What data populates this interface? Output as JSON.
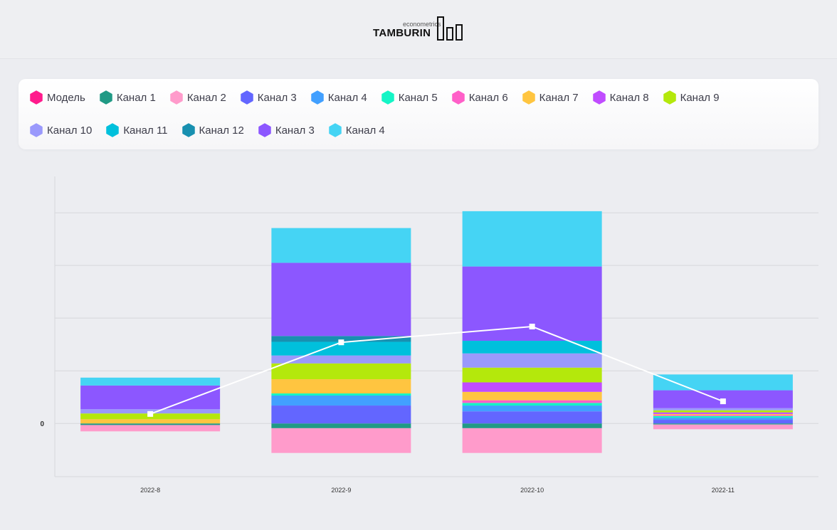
{
  "logo": {
    "sub": "econometrics",
    "main": "TAMBURIN"
  },
  "legend": {
    "row1": [
      {
        "label": "Модель",
        "color": "#ff1a8c"
      },
      {
        "label": "Канал 1",
        "color": "#209a85"
      },
      {
        "label": "Канал 2",
        "color": "#ff9bcb"
      },
      {
        "label": "Канал 3",
        "color": "#6366ff"
      },
      {
        "label": "Канал 4",
        "color": "#42a0ff"
      },
      {
        "label": "Канал 5",
        "color": "#14f5c6"
      },
      {
        "label": "Канал 6",
        "color": "#ff5fc8"
      },
      {
        "label": "Канал 7",
        "color": "#ffc540"
      },
      {
        "label": "Канал 8",
        "color": "#c04cff"
      },
      {
        "label": "Канал 9",
        "color": "#b4e80c"
      }
    ],
    "row2": [
      {
        "label": "Канал 10",
        "color": "#9a99fc"
      },
      {
        "label": "Канал 11",
        "color": "#00c0dc"
      },
      {
        "label": "Канал 12",
        "color": "#1890b0"
      },
      {
        "label": "Канал 3",
        "color": "#8c57ff"
      },
      {
        "label": "Канал 4",
        "color": "#45d4f4"
      }
    ]
  },
  "chart_data": {
    "type": "bar",
    "stacked": true,
    "categories": [
      "2022-8",
      "2022-9",
      "2022-10",
      "2022-11"
    ],
    "ylim": [
      -101,
      469
    ],
    "yticks": [
      0,
      100,
      200,
      300,
      400
    ],
    "ytick_labels": [
      "0"
    ],
    "grid": true,
    "legend_placement": "top",
    "series": [
      {
        "name": "Канал 1",
        "color": "#209a85",
        "values": [
          -3,
          -9,
          -9,
          -2
        ]
      },
      {
        "name": "Канал 2",
        "color": "#ff9bcb",
        "values": [
          -12,
          -47,
          -47,
          -9
        ]
      },
      {
        "name": "Канал 3",
        "color": "#6366ff",
        "values": [
          0,
          34,
          23,
          7
        ]
      },
      {
        "name": "Канал 4",
        "color": "#42a0ff",
        "values": [
          0,
          19,
          11,
          4
        ]
      },
      {
        "name": "Канал 5",
        "color": "#14f5c6",
        "values": [
          0,
          4,
          5,
          3
        ]
      },
      {
        "name": "Канал 6",
        "color": "#ff5fc8",
        "values": [
          0,
          0,
          5,
          2
        ]
      },
      {
        "name": "Канал 7",
        "color": "#ffc540",
        "values": [
          8,
          27,
          16,
          2
        ]
      },
      {
        "name": "Канал 8",
        "color": "#c04cff",
        "values": [
          0,
          0,
          18,
          3
        ]
      },
      {
        "name": "Канал 9",
        "color": "#b4e80c",
        "values": [
          11,
          30,
          28,
          4
        ]
      },
      {
        "name": "Канал 10",
        "color": "#9a99fc",
        "values": [
          8,
          15,
          27,
          4
        ]
      },
      {
        "name": "Канал 11",
        "color": "#00c0dc",
        "values": [
          0,
          26,
          24,
          0
        ]
      },
      {
        "name": "Канал 12",
        "color": "#1890b0",
        "values": [
          0,
          11,
          0,
          0
        ]
      },
      {
        "name": "Канал 3",
        "color": "#8c57ff",
        "values": [
          45,
          139,
          141,
          34
        ]
      },
      {
        "name": "Канал 4",
        "color": "#45d4f4",
        "values": [
          15,
          66,
          105,
          30
        ]
      }
    ],
    "line": {
      "name": "Модель",
      "color": "#ffffff",
      "values": [
        18,
        154,
        184,
        42
      ]
    }
  }
}
